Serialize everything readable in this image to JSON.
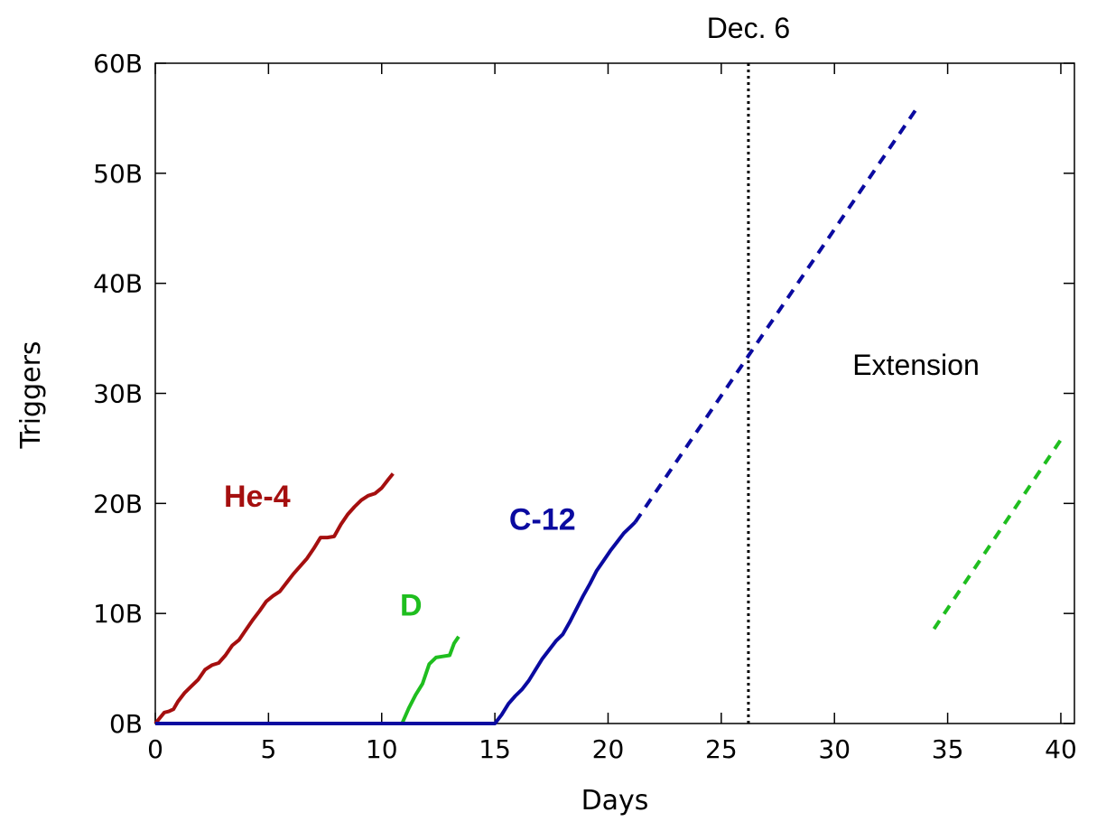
{
  "chart_data": {
    "type": "line",
    "xlabel": "Days",
    "ylabel": "Triggers",
    "xlim": [
      0,
      40.6
    ],
    "ylim": [
      0,
      60
    ],
    "x_ticks": [
      0,
      5,
      10,
      15,
      20,
      25,
      30,
      35,
      40
    ],
    "y_ticks": [
      {
        "value": 0,
        "label": "0B"
      },
      {
        "value": 10,
        "label": "10B"
      },
      {
        "value": 20,
        "label": "20B"
      },
      {
        "value": 30,
        "label": "30B"
      },
      {
        "value": 40,
        "label": "40B"
      },
      {
        "value": 50,
        "label": "50B"
      },
      {
        "value": 60,
        "label": "60B"
      }
    ],
    "grid": false,
    "colors": {
      "he4": "#a50f0f",
      "d": "#1fbe1f",
      "c12": "#0a0aa0",
      "marker": "#000000"
    },
    "series": [
      {
        "key": "he4",
        "name": "He-4",
        "style": "solid",
        "x": [
          0,
          0.2,
          0.4,
          0.6,
          0.8,
          1.0,
          1.3,
          1.6,
          1.9,
          2.2,
          2.5,
          2.8,
          3.1,
          3.4,
          3.7,
          4.0,
          4.3,
          4.6,
          4.9,
          5.2,
          5.5,
          5.8,
          6.1,
          6.4,
          6.7,
          7.0,
          7.3,
          7.6,
          7.9,
          8.2,
          8.5,
          8.8,
          9.1,
          9.4,
          9.7,
          10.0,
          10.3,
          10.5
        ],
        "y": [
          0,
          0.5,
          1.0,
          1.1,
          1.3,
          2.0,
          2.8,
          3.4,
          4.0,
          4.9,
          5.3,
          5.5,
          6.2,
          7.1,
          7.6,
          8.5,
          9.4,
          10.2,
          11.1,
          11.6,
          12.0,
          12.8,
          13.6,
          14.3,
          15.0,
          15.9,
          16.9,
          16.9,
          17.0,
          18.1,
          19.0,
          19.7,
          20.3,
          20.7,
          20.9,
          21.4,
          22.2,
          22.7
        ]
      },
      {
        "key": "d",
        "name": "D",
        "style": "solid",
        "x": [
          0,
          10.9,
          11.2,
          11.5,
          11.8,
          12.1,
          12.4,
          12.7,
          13.0,
          13.2,
          13.4
        ],
        "y": [
          0,
          0,
          1.4,
          2.6,
          3.6,
          5.4,
          6.0,
          6.1,
          6.2,
          7.3,
          7.9
        ]
      },
      {
        "key": "c12",
        "name": "C-12",
        "style": "solid",
        "x": [
          0,
          15.0,
          15.3,
          15.6,
          15.9,
          16.2,
          16.5,
          16.8,
          17.1,
          17.4,
          17.7,
          18.0,
          18.3,
          18.6,
          18.9,
          19.2,
          19.5,
          19.8,
          20.1,
          20.4,
          20.7,
          21.0,
          21.2
        ],
        "y": [
          0,
          0,
          0.8,
          1.8,
          2.5,
          3.1,
          3.9,
          4.9,
          5.9,
          6.7,
          7.5,
          8.1,
          9.2,
          10.4,
          11.6,
          12.7,
          13.9,
          14.8,
          15.7,
          16.5,
          17.3,
          17.9,
          18.3
        ]
      },
      {
        "key": "c12",
        "name": "C-12 extension",
        "style": "dashed",
        "x": [
          21.2,
          33.6
        ],
        "y": [
          18.3,
          55.8
        ]
      },
      {
        "key": "d",
        "name": "D extension",
        "style": "dashed",
        "x": [
          34.4,
          40.0
        ],
        "y": [
          8.6,
          25.8
        ]
      }
    ],
    "series_labels": [
      {
        "key": "he4",
        "text": "He-4",
        "x": 4.5,
        "y": 19.7
      },
      {
        "key": "d",
        "text": "D",
        "x": 11.3,
        "y": 9.8
      },
      {
        "key": "c12",
        "text": "C-12",
        "x": 17.1,
        "y": 17.6
      }
    ],
    "marker": {
      "x": 26.2,
      "label": "Dec. 6",
      "style": "dotted"
    },
    "annotations": [
      {
        "text": "Extension",
        "x": 33.6,
        "y": 31.7
      }
    ]
  }
}
